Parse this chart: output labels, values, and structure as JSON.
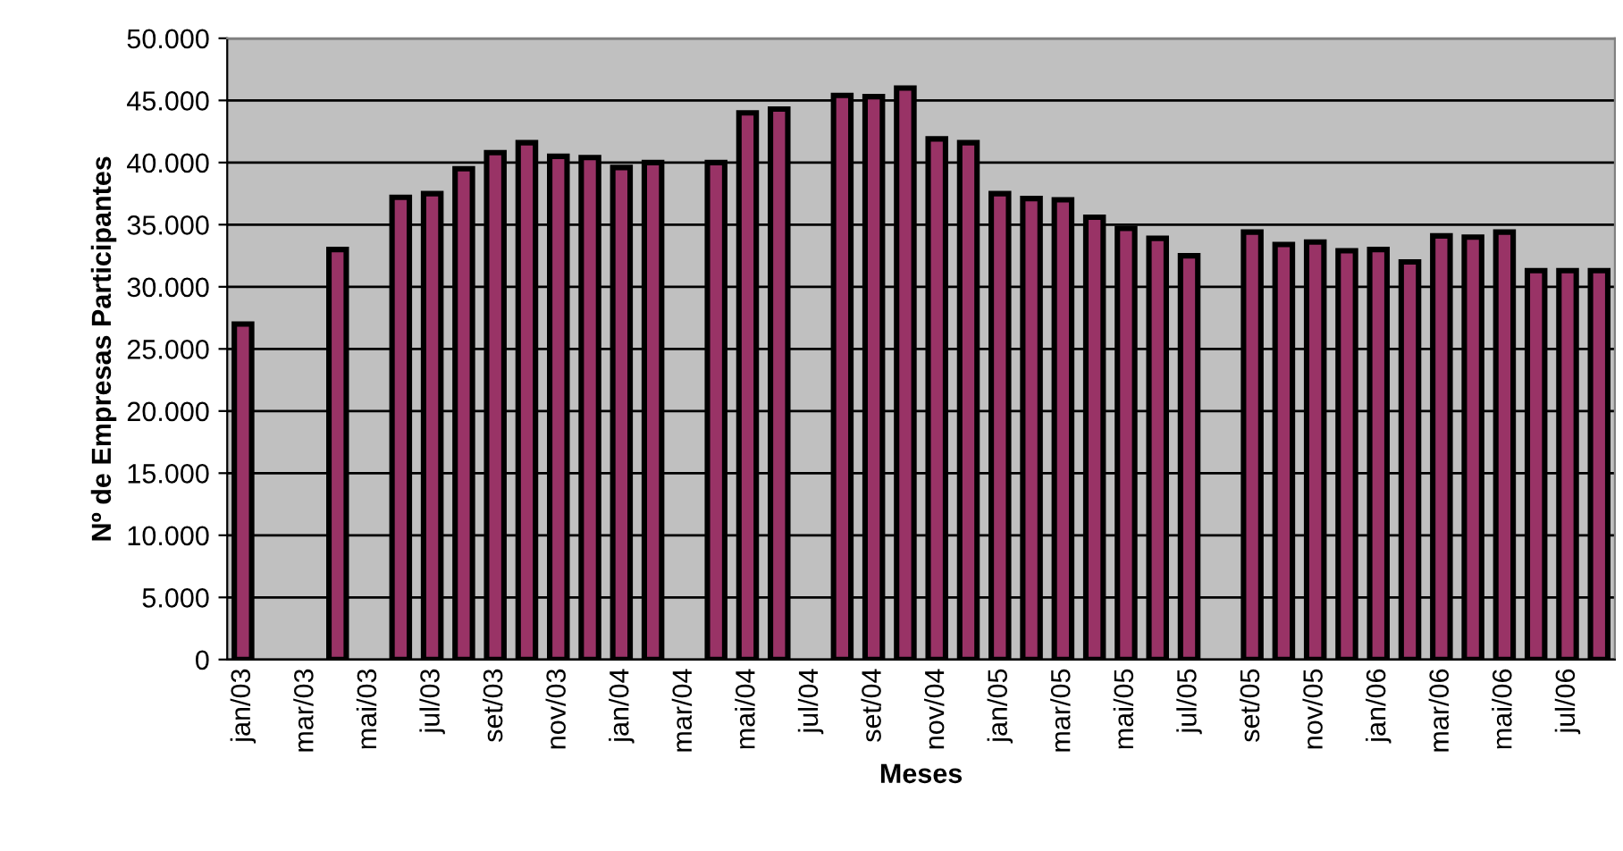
{
  "chart_data": {
    "type": "bar",
    "xlabel": "Meses",
    "ylabel": "Nº de Empresas Participantes",
    "categories": [
      "jan/03",
      null,
      "mar/03",
      null,
      "mai/03",
      null,
      "jul/03",
      null,
      "set/03",
      null,
      "nov/03",
      null,
      "jan/04",
      null,
      "mar/04",
      null,
      "mai/04",
      null,
      "jul/04",
      null,
      "set/04",
      null,
      "nov/04",
      null,
      "jan/05",
      null,
      "mar/05",
      null,
      "mai/05",
      null,
      "jul/05",
      null,
      "set/05",
      null,
      "nov/05",
      null,
      "jan/06",
      null,
      "mar/06",
      null,
      "mai/06",
      null,
      "jul/06",
      null
    ],
    "values": [
      27000,
      null,
      null,
      33000,
      null,
      37200,
      37500,
      39500,
      40800,
      41600,
      40500,
      40400,
      39600,
      40000,
      null,
      40000,
      44000,
      44300,
      null,
      45400,
      45300,
      46000,
      41900,
      41600,
      37500,
      37100,
      37000,
      35600,
      34700,
      33900,
      32500,
      null,
      34400,
      33400,
      33600,
      32900,
      33000,
      32000,
      34100,
      34000,
      34400,
      31300,
      31300,
      31300
    ],
    "color": "#993366",
    "ylim": [
      0,
      50000
    ],
    "yticks": [
      {
        "value": 0,
        "label": "0"
      },
      {
        "value": 5000,
        "label": "5.000"
      },
      {
        "value": 10000,
        "label": "10.000"
      },
      {
        "value": 15000,
        "label": "15.000"
      },
      {
        "value": 20000,
        "label": "20.000"
      },
      {
        "value": 25000,
        "label": "25.000"
      },
      {
        "value": 30000,
        "label": "30.000"
      },
      {
        "value": 35000,
        "label": "35.000"
      },
      {
        "value": 40000,
        "label": "40.000"
      },
      {
        "value": 45000,
        "label": "45.000"
      },
      {
        "value": 50000,
        "label": "50.000"
      }
    ],
    "grid": "y",
    "legend": false
  }
}
